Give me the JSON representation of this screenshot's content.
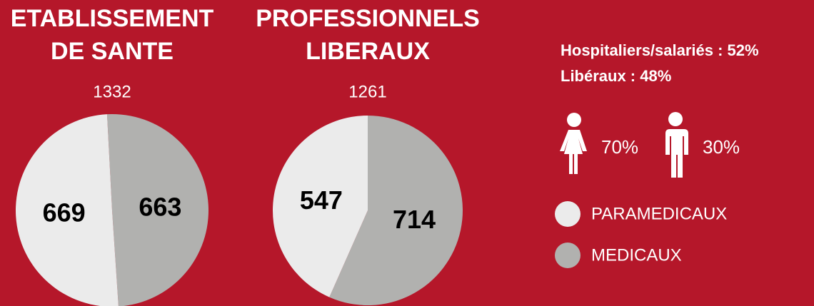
{
  "chart_data": [
    {
      "type": "pie",
      "title": "ETABLISSEMENT DE SANTE",
      "total": "1332",
      "values": [
        669,
        663
      ],
      "start_angle": -3
    },
    {
      "type": "pie",
      "title": "PROFESSIONNELS LIBERAUX",
      "total": "1261",
      "values": [
        547,
        714
      ],
      "start_angle": 0
    }
  ],
  "legend": {
    "categories": [
      "PARAMEDICAUX",
      "MEDICAUX"
    ],
    "colors": [
      "#ebebeb",
      "#b1b1af"
    ]
  },
  "stats": [
    "Hospitaliers/salariés : 52%",
    "Libéraux : 48%"
  ],
  "gender": {
    "women": "70%",
    "men": "30%"
  }
}
